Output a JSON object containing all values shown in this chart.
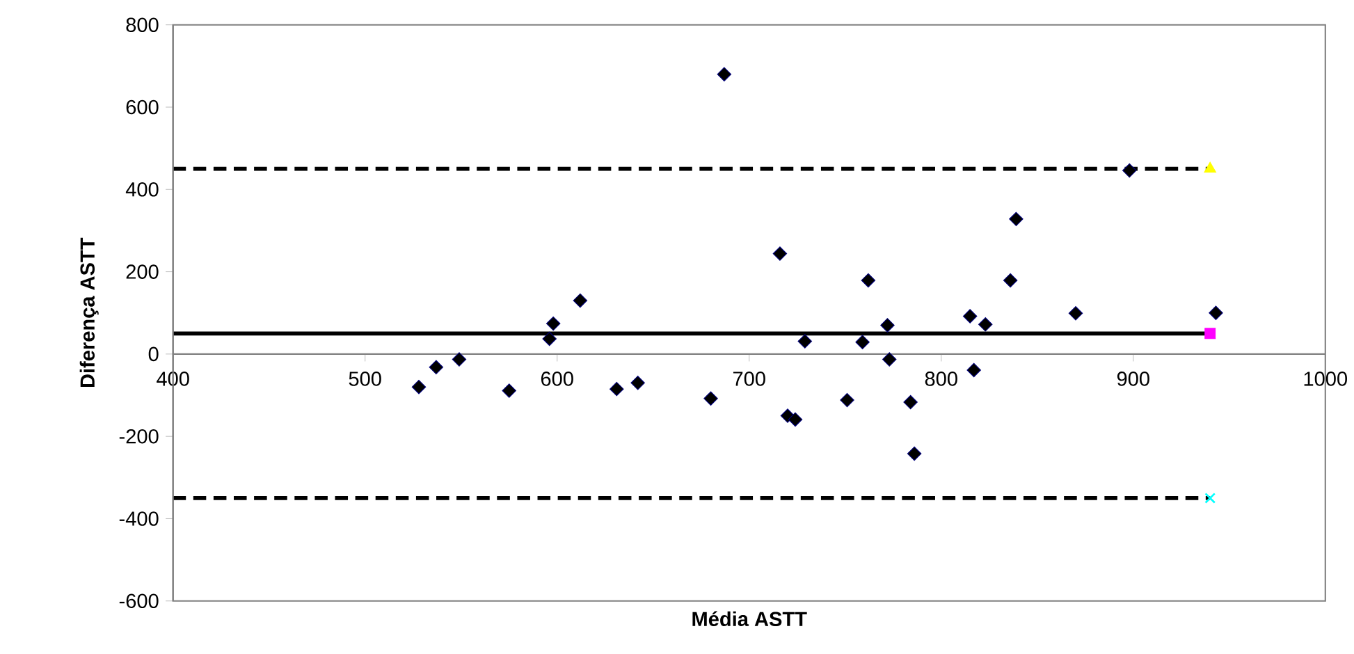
{
  "chart_data": {
    "type": "scatter",
    "xlabel": "Média ASTT",
    "ylabel": "Diferença ASTT",
    "xlim": [
      400,
      1000
    ],
    "xticks": [
      400,
      500,
      600,
      700,
      800,
      900,
      1000
    ],
    "ylim": [
      -600,
      800
    ],
    "yticks": [
      -600,
      -400,
      -200,
      0,
      200,
      400,
      600,
      800
    ],
    "grid": false,
    "series": [
      {
        "type": "scatter",
        "marker": "diamond",
        "color": "#000000",
        "x": [
          528,
          537,
          549,
          575,
          596,
          598,
          612,
          631,
          642,
          680,
          687,
          716,
          720,
          724,
          729,
          751,
          759,
          762,
          772,
          773,
          784,
          786,
          815,
          817,
          823,
          836,
          839,
          870,
          898,
          943
        ],
        "values": [
          -80,
          -32,
          -13,
          -89,
          37,
          74,
          130,
          -85,
          -70,
          -108,
          680,
          244,
          -150,
          -159,
          31,
          -112,
          29,
          179,
          70,
          -13,
          -117,
          -242,
          92,
          -39,
          72,
          179,
          328,
          99,
          446,
          100
        ]
      },
      {
        "type": "line",
        "marker": "none",
        "line_style": "dashed",
        "color": "#000000",
        "x": [
          400,
          940
        ],
        "values": [
          450,
          450
        ]
      },
      {
        "type": "line",
        "marker": "none",
        "line_style": "solid",
        "color": "#000000",
        "x": [
          400,
          940
        ],
        "values": [
          50,
          50
        ]
      },
      {
        "type": "line",
        "marker": "none",
        "line_style": "dashed",
        "color": "#000000",
        "x": [
          400,
          940
        ],
        "values": [
          -350,
          -350
        ]
      },
      {
        "type": "scatter",
        "marker": "triangle",
        "color": "#ffff00",
        "x": [
          940
        ],
        "values": [
          450
        ]
      },
      {
        "type": "scatter",
        "marker": "square",
        "color": "#ff00ff",
        "x": [
          940
        ],
        "values": [
          50
        ]
      },
      {
        "type": "scatter",
        "marker": "cross",
        "color": "#00ffff",
        "x": [
          940
        ],
        "values": [
          -350
        ]
      }
    ]
  }
}
